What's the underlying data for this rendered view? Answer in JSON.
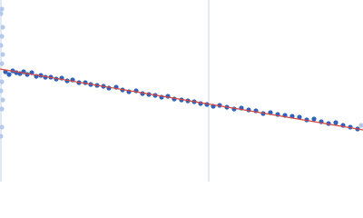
{
  "chart_data": {
    "type": "scatter",
    "xlim": [
      0,
      400
    ],
    "ylim": [
      0,
      200
    ],
    "vlines": [
      1,
      230
    ],
    "vline_color": "#c9d6ea",
    "series": [
      {
        "color": "#2f62b8",
        "x": [
          6,
          10,
          14,
          18,
          22,
          26,
          30,
          35,
          40,
          45,
          50,
          56,
          62,
          68,
          74,
          80,
          87,
          94,
          100,
          107,
          114,
          120,
          128,
          135,
          142,
          150,
          157,
          164,
          171,
          178,
          185,
          192,
          200,
          207,
          214,
          221,
          228,
          235,
          242,
          250,
          258,
          266,
          274,
          282,
          290,
          298,
          306,
          314,
          322,
          330,
          338,
          346,
          354,
          362,
          370,
          378,
          386,
          394
        ],
        "values": [
          121,
          118,
          122,
          120,
          119,
          121,
          118,
          120,
          116,
          117,
          115,
          115,
          113,
          114,
          111,
          112,
          109,
          109,
          107,
          106,
          105,
          103,
          104,
          101,
          99,
          100,
          97,
          96,
          95,
          93,
          94,
          91,
          90,
          89,
          88,
          86,
          85,
          83,
          84,
          82,
          80,
          81,
          79,
          78,
          75,
          76,
          74,
          73,
          72,
          71,
          68,
          69,
          66,
          64,
          65,
          62,
          60,
          58
        ]
      },
      {
        "color": "#b7c9e8",
        "x": [
          2,
          1,
          3,
          2,
          1,
          3,
          2,
          2,
          1,
          3,
          2,
          2,
          1,
          398
        ],
        "values": [
          190,
          185,
          170,
          160,
          150,
          140,
          130,
          110,
          100,
          90,
          80,
          60,
          50,
          62
        ]
      }
    ],
    "fit": {
      "color": "#d9453d",
      "x": [
        0,
        400
      ],
      "values": [
        124,
        57
      ]
    }
  }
}
